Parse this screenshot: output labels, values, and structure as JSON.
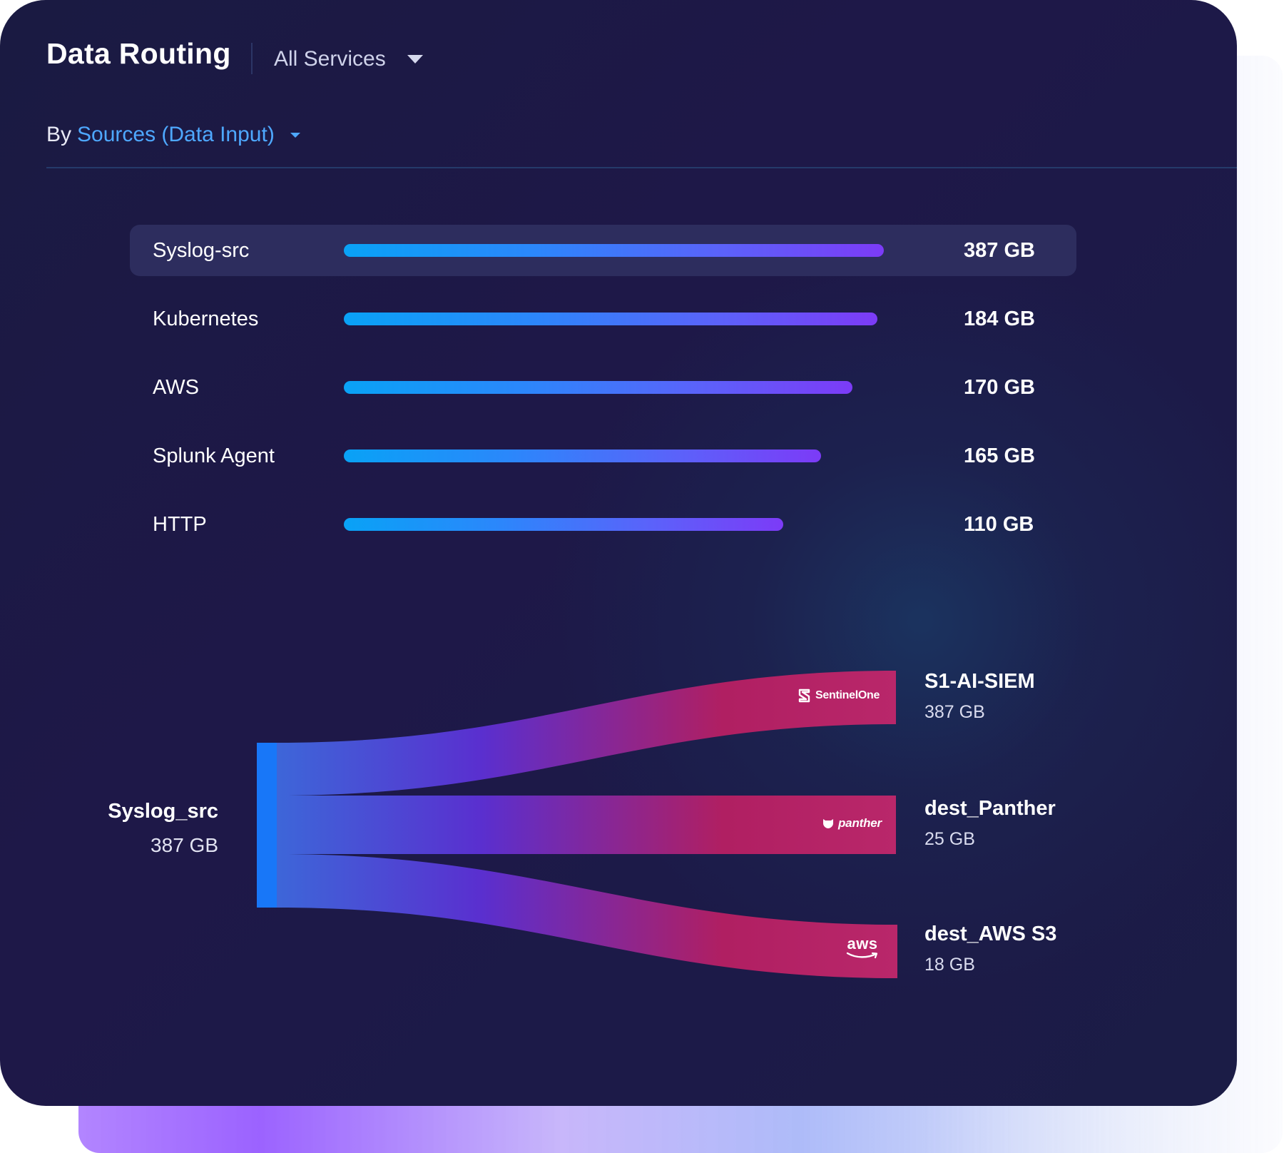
{
  "header": {
    "title": "Data Routing",
    "service_filter": "All Services"
  },
  "grouping": {
    "prefix": "By",
    "selected": "Sources (Data Input)"
  },
  "sources": [
    {
      "name": "Syslog-src",
      "value_label": "387 GB",
      "fill_fraction": 0.86,
      "selected": true
    },
    {
      "name": "Kubernetes",
      "value_label": "184 GB",
      "fill_fraction": 0.85
    },
    {
      "name": "AWS",
      "value_label": "170 GB",
      "fill_fraction": 0.81
    },
    {
      "name": "Splunk Agent",
      "value_label": "165 GB",
      "fill_fraction": 0.76
    },
    {
      "name": "HTTP",
      "value_label": "110 GB",
      "fill_fraction": 0.7
    }
  ],
  "routing": {
    "source": {
      "name": "Syslog_src",
      "value_label": "387 GB"
    },
    "destinations": [
      {
        "name": "S1-AI-SIEM",
        "value_label": "387 GB",
        "logo": "SentinelOne",
        "logo_icon": "sentinelone-logo-icon"
      },
      {
        "name": "dest_Panther",
        "value_label": "25 GB",
        "logo": "panther",
        "logo_icon": "panther-logo-icon"
      },
      {
        "name": "dest_AWS S3",
        "value_label": "18 GB",
        "logo": "aws",
        "logo_icon": "aws-logo-icon"
      }
    ]
  },
  "colors": {
    "card_background": "#1c1a48",
    "accent_link": "#4ea8ff",
    "bar_gradient_start": "#09a2f6",
    "bar_gradient_end": "#7c3bf7",
    "flow_gradient_start": "#3f6ae0",
    "flow_gradient_mid": "#5a2fcf",
    "flow_gradient_end": "#b31f62",
    "source_node": "#1877f8"
  }
}
